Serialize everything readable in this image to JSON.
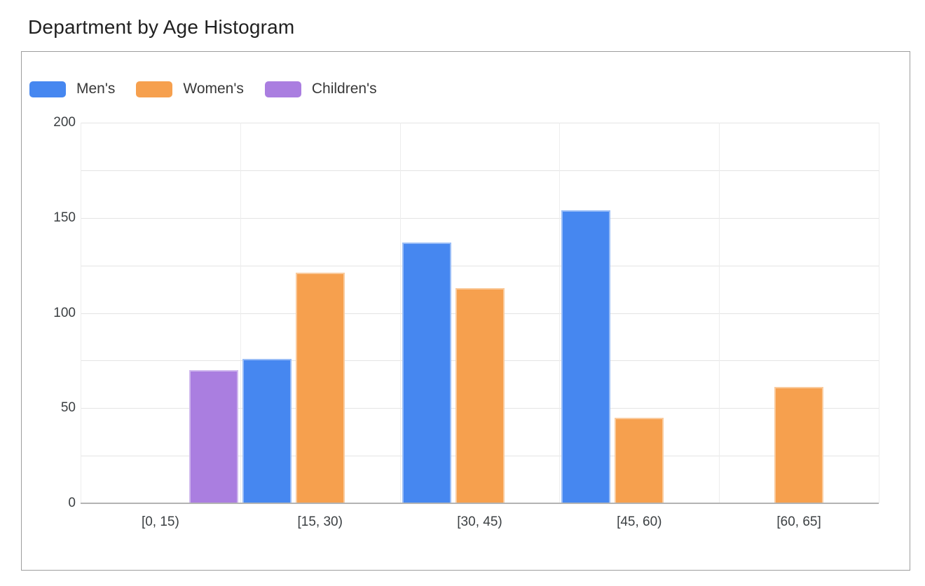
{
  "page": {
    "title": "Department by Age Histogram"
  },
  "chart_data": {
    "type": "bar",
    "title": "Department by Age Histogram",
    "subtitle": "",
    "xlabel": "",
    "ylabel": "",
    "categories": [
      "[0, 15)",
      "[15, 30)",
      "[30, 45)",
      "[45, 60)",
      "[60, 65]"
    ],
    "series": [
      {
        "name": "Men's",
        "color": "#4687f0",
        "values": [
          0,
          76,
          137,
          154,
          0
        ]
      },
      {
        "name": "Women's",
        "color": "#f6a04e",
        "values": [
          0,
          121,
          113,
          45,
          61
        ]
      },
      {
        "name": "Children's",
        "color": "#aa7ee0",
        "values": [
          70,
          0,
          0,
          0,
          0
        ]
      }
    ],
    "ylim": [
      0,
      200
    ],
    "yticks": [
      0,
      50,
      100,
      150,
      200
    ],
    "minor_grid_step": 25,
    "grid": true,
    "legend_position": "top-left",
    "colors": {
      "grid": "#e4e4e4",
      "axis_baseline": "#b3b3b3",
      "title_text": "#212121",
      "tick_text": "#3c4043",
      "chart_border": "#9d9d9d"
    }
  }
}
